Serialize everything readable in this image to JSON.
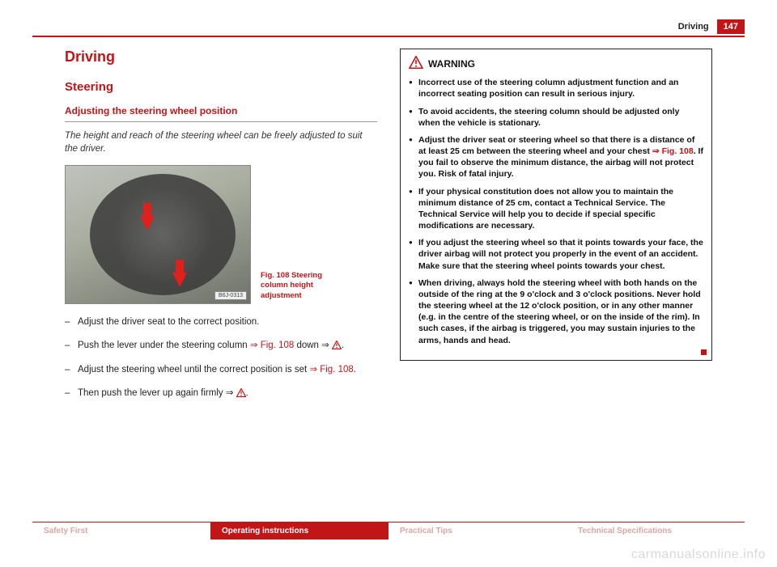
{
  "header": {
    "section": "Driving",
    "page": "147"
  },
  "left": {
    "h1": "Driving",
    "h2": "Steering",
    "h3": "Adjusting the steering wheel position",
    "intro": "The height and reach of the steering wheel can be freely adjusted to suit the driver.",
    "fig_tag": "B6J-0313",
    "caption": "Fig. 108  Steering column height adjustment",
    "steps": [
      {
        "pre": "Adjust the driver seat to the correct position."
      },
      {
        "pre": "Push the lever under the steering column ",
        "link": "⇒ Fig. 108",
        "post": " down ⇒ ",
        "warn": true,
        "tail": "."
      },
      {
        "pre": "Adjust the steering wheel until the correct position is set ",
        "link": "⇒ Fig. 108",
        "post": "."
      },
      {
        "pre": "Then push the lever up again firmly ⇒ ",
        "warn": true,
        "tail": "."
      }
    ]
  },
  "right": {
    "warning_title": "WARNING",
    "items": [
      "Incorrect use of the steering column adjustment function and an incorrect seating position can result in serious injury.",
      "To avoid accidents, the steering column should be adjusted only when the vehicle is stationary.",
      {
        "pre": "Adjust the driver seat or steering wheel so that there is a distance of at least 25 cm between the steering wheel and your chest ",
        "link": "⇒ Fig. 108",
        "post": ". If you fail to observe the minimum distance, the airbag will not protect you. Risk of fatal injury."
      },
      "If your physical constitution does not allow you to maintain the minimum distance of 25 cm, contact a Technical Service. The Technical Service will help you to decide if special specific modifications are necessary.",
      "If you adjust the steering wheel so that it points towards your face, the driver airbag will not protect you properly in the event of an accident. Make sure that the steering wheel points towards your chest.",
      "When driving, always hold the steering wheel with both hands on the outside of the ring at the 9 o'clock and 3 o'clock positions. Never hold the steering wheel at the 12 o'clock position, or in any other manner (e.g. in the centre of the steering wheel, or on the inside of the rim). In such cases, if the airbag is triggered, you may sustain injuries to the arms, hands and head."
    ]
  },
  "footer": {
    "tabs": [
      "Safety First",
      "Operating instructions",
      "Practical Tips",
      "Technical Specifications"
    ],
    "active": 1
  },
  "watermark": "carmanualsonline.info",
  "colors": {
    "accent": "#c11518",
    "text": "#222222",
    "muted_tab": "#d9a6a6"
  }
}
